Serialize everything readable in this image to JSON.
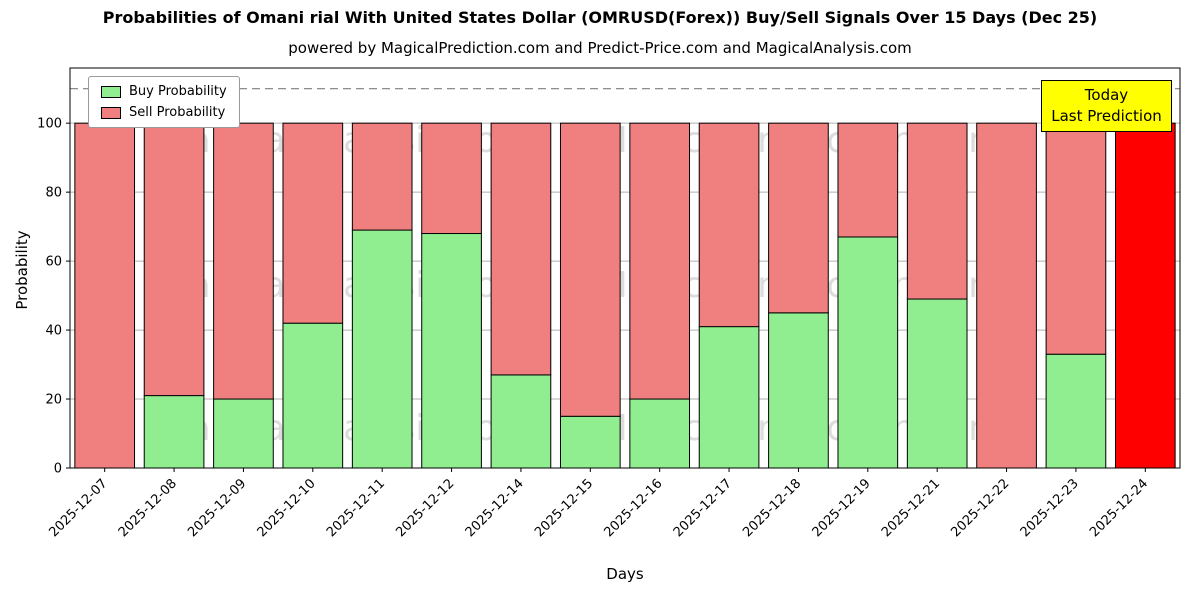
{
  "title": "Probabilities of Omani rial With United States Dollar (OMRUSD(Forex)) Buy/Sell Signals Over 15 Days (Dec 25)",
  "subtitle": "powered by MagicalPrediction.com and Predict-Price.com and MagicalAnalysis.com",
  "annotation": {
    "line1": "Today",
    "line2": "Last Prediction",
    "background": "#ffff00"
  },
  "chart_data": {
    "type": "bar",
    "stacked": true,
    "title": "Probabilities of Omani rial With United States Dollar (OMRUSD(Forex)) Buy/Sell Signals Over 15 Days (Dec 25)",
    "xlabel": "Days",
    "ylabel": "Probability",
    "ylim": [
      0,
      116
    ],
    "yticks": [
      0,
      20,
      40,
      60,
      80,
      100
    ],
    "grid": true,
    "dashed_line_y": 110,
    "legend_position": "upper left",
    "categories": [
      "2025-12-07",
      "2025-12-08",
      "2025-12-09",
      "2025-12-10",
      "2025-12-11",
      "2025-12-12",
      "2025-12-14",
      "2025-12-15",
      "2025-12-16",
      "2025-12-17",
      "2025-12-18",
      "2025-12-19",
      "2025-12-21",
      "2025-12-22",
      "2025-12-23",
      "2025-12-24"
    ],
    "series": [
      {
        "name": "Buy Probability",
        "color": "#90ee90",
        "values": [
          0,
          21,
          20,
          42,
          69,
          68,
          27,
          15,
          20,
          41,
          45,
          67,
          49,
          0,
          33,
          0
        ]
      },
      {
        "name": "Sell Probability",
        "color": "#f08080",
        "values": [
          100,
          79,
          80,
          58,
          31,
          32,
          73,
          85,
          80,
          59,
          55,
          33,
          51,
          100,
          67,
          100
        ]
      }
    ],
    "today_index": 15,
    "today_color": "#ff0000",
    "watermarks": [
      "MagicalAnalysis.com",
      "Magica Prediction.com"
    ],
    "colors": {
      "grid": "#b0b0b0",
      "dashed_line": "#7f7f7f",
      "bar_edge": "#000000",
      "watermark": "rgba(128,128,128,0.28)"
    }
  }
}
